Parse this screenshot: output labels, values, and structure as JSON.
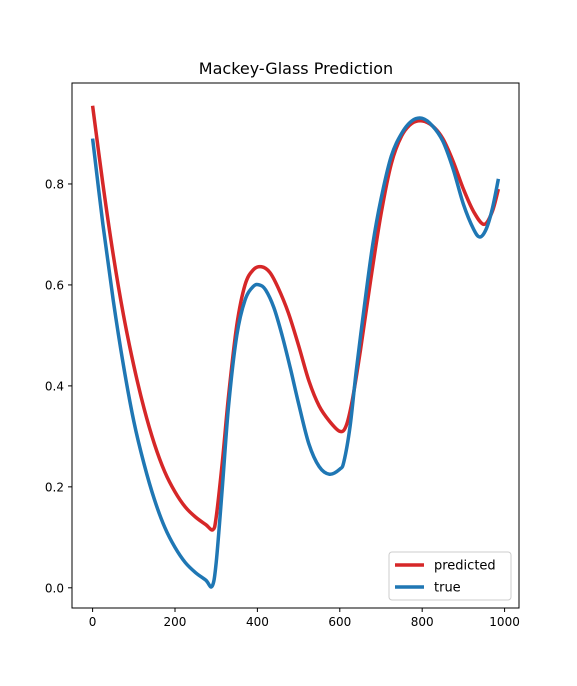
{
  "chart_data": {
    "type": "line",
    "title": "Mackey-Glass Prediction",
    "xlabel": "",
    "ylabel": "",
    "xlim": [
      -50,
      1035
    ],
    "ylim": [
      -0.04,
      1.0
    ],
    "x_ticks": [
      0,
      200,
      400,
      600,
      800,
      1000
    ],
    "y_ticks": [
      0.0,
      0.2,
      0.4,
      0.6,
      0.8
    ],
    "x_tick_labels": [
      "0",
      "200",
      "400",
      "600",
      "800",
      "1000"
    ],
    "y_tick_labels": [
      "0.0",
      "0.2",
      "0.4",
      "0.6",
      "0.8"
    ],
    "grid": false,
    "legend_position": "lower-right",
    "series": [
      {
        "name": "predicted",
        "color": "#d62728",
        "x": [
          0,
          25,
          50,
          75,
          100,
          125,
          150,
          175,
          200,
          225,
          250,
          275,
          292,
          300,
          315,
          330,
          350,
          370,
          390,
          410,
          430,
          450,
          475,
          500,
          525,
          550,
          575,
          600,
          615,
          630,
          650,
          675,
          700,
          725,
          750,
          775,
          800,
          825,
          850,
          875,
          900,
          925,
          950,
          970,
          985
        ],
        "values": [
          0.955,
          0.8,
          0.66,
          0.54,
          0.44,
          0.355,
          0.285,
          0.23,
          0.19,
          0.16,
          0.14,
          0.125,
          0.115,
          0.14,
          0.25,
          0.38,
          0.52,
          0.6,
          0.63,
          0.636,
          0.625,
          0.595,
          0.545,
          0.48,
          0.41,
          0.36,
          0.33,
          0.31,
          0.32,
          0.37,
          0.47,
          0.61,
          0.74,
          0.84,
          0.895,
          0.92,
          0.925,
          0.915,
          0.89,
          0.845,
          0.79,
          0.745,
          0.72,
          0.745,
          0.79
        ]
      },
      {
        "name": "true",
        "color": "#1f77b4",
        "x": [
          0,
          25,
          50,
          75,
          100,
          125,
          150,
          175,
          200,
          225,
          250,
          275,
          290,
          300,
          315,
          330,
          350,
          370,
          390,
          405,
          420,
          440,
          460,
          480,
          500,
          525,
          550,
          575,
          600,
          610,
          625,
          640,
          660,
          680,
          700,
          725,
          750,
          775,
          800,
          825,
          850,
          875,
          900,
          925,
          940,
          955,
          970,
          985
        ],
        "values": [
          0.89,
          0.72,
          0.57,
          0.44,
          0.33,
          0.245,
          0.175,
          0.12,
          0.08,
          0.05,
          0.03,
          0.015,
          0.003,
          0.05,
          0.2,
          0.36,
          0.5,
          0.57,
          0.597,
          0.6,
          0.59,
          0.555,
          0.5,
          0.435,
          0.365,
          0.285,
          0.24,
          0.225,
          0.235,
          0.25,
          0.32,
          0.43,
          0.56,
          0.68,
          0.77,
          0.855,
          0.9,
          0.925,
          0.93,
          0.915,
          0.885,
          0.83,
          0.76,
          0.71,
          0.695,
          0.71,
          0.75,
          0.81
        ]
      }
    ]
  }
}
